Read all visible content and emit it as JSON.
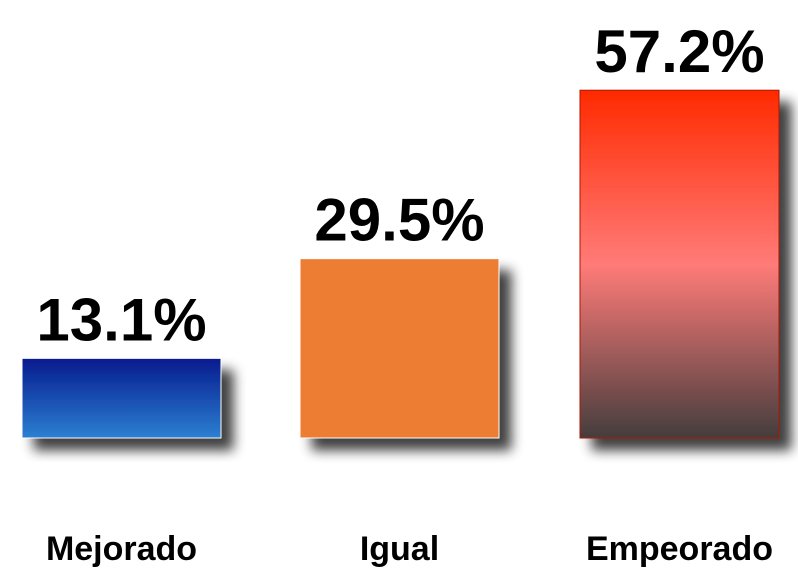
{
  "chart_data": {
    "type": "bar",
    "categories": [
      "Mejorado",
      "Igual",
      "Empeorado"
    ],
    "values": [
      13.1,
      29.5,
      57.2
    ],
    "value_labels": [
      "13.1%",
      "29.5%",
      "57.2%"
    ],
    "colors": [
      [
        "#061a8e",
        "#2c80d2"
      ],
      [
        "#ed7d31"
      ],
      [
        "#ff2a00",
        "#ff7b78",
        "#453d3d"
      ]
    ]
  }
}
